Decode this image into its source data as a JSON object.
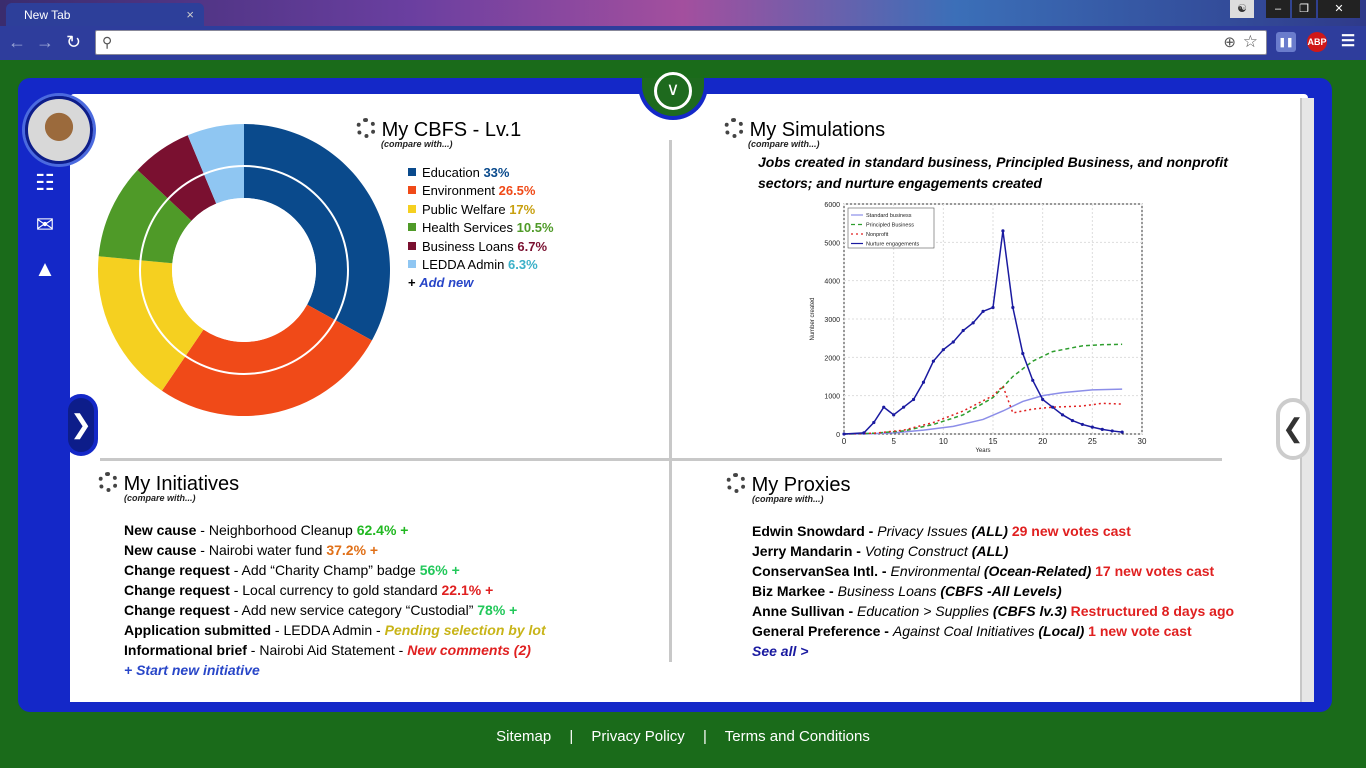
{
  "browser": {
    "tab_title": "New Tab",
    "tab_close": "×",
    "address_value": "",
    "ext_abp": "ABP"
  },
  "cbfs": {
    "title": "My CBFS - Lv.1",
    "compare": "(compare with...)",
    "items": [
      {
        "label": "Education",
        "value": "33%",
        "color": "#0a4a8c"
      },
      {
        "label": "Environment",
        "value": "26.5%",
        "color": "#f04a18"
      },
      {
        "label": "Public Welfare",
        "value": "17%",
        "color": "#f5d020"
      },
      {
        "label": "Health Services",
        "value": "10.5%",
        "color": "#4f9a28"
      },
      {
        "label": "Business Loans",
        "value": "6.7%",
        "color": "#7a1030"
      },
      {
        "label": "LEDDA Admin",
        "value": "6.3%",
        "color": "#8fc6f2"
      }
    ],
    "add_new_plus": "+",
    "add_new": "Add new"
  },
  "sims": {
    "title": "My Simulations",
    "compare": "(compare with...)",
    "desc": "Jobs created in standard business, Principled Business, and nonprofit sectors; and nurture engagements created"
  },
  "chart_data": {
    "type": "line",
    "title": "",
    "xlabel": "Years",
    "ylabel": "Number created",
    "xlim": [
      0,
      30
    ],
    "ylim": [
      0,
      6000
    ],
    "xticks": [
      "0",
      "5",
      "10",
      "15",
      "20",
      "25",
      "30"
    ],
    "yticks": [
      "0",
      "1000",
      "2000",
      "3000",
      "4000",
      "5000",
      "6000"
    ],
    "series": [
      {
        "name": "Standard business",
        "color": "#8c8ee8",
        "dash": "",
        "points": [
          [
            0,
            0
          ],
          [
            2,
            0
          ],
          [
            5,
            30
          ],
          [
            8,
            100
          ],
          [
            11,
            200
          ],
          [
            14,
            380
          ],
          [
            16,
            600
          ],
          [
            18,
            850
          ],
          [
            20,
            1000
          ],
          [
            22,
            1080
          ],
          [
            25,
            1150
          ],
          [
            28,
            1170
          ]
        ]
      },
      {
        "name": "Principled Business",
        "color": "#2e9e2e",
        "dash": "4,3",
        "points": [
          [
            0,
            0
          ],
          [
            3,
            20
          ],
          [
            6,
            80
          ],
          [
            9,
            250
          ],
          [
            12,
            500
          ],
          [
            15,
            950
          ],
          [
            17,
            1500
          ],
          [
            19,
            1900
          ],
          [
            21,
            2150
          ],
          [
            24,
            2300
          ],
          [
            26,
            2330
          ],
          [
            28,
            2340
          ]
        ]
      },
      {
        "name": "Nonprofit",
        "color": "#e02020",
        "dash": "2,3",
        "points": [
          [
            0,
            0
          ],
          [
            3,
            20
          ],
          [
            6,
            100
          ],
          [
            9,
            300
          ],
          [
            12,
            600
          ],
          [
            15,
            1000
          ],
          [
            16,
            1250
          ],
          [
            17,
            550
          ],
          [
            19,
            650
          ],
          [
            21,
            700
          ],
          [
            24,
            730
          ],
          [
            26,
            800
          ],
          [
            28,
            780
          ]
        ]
      },
      {
        "name": "Nurture engagements",
        "color": "#1a1aa0",
        "dash": "",
        "points": [
          [
            0,
            0
          ],
          [
            2,
            30
          ],
          [
            3,
            300
          ],
          [
            4,
            700
          ],
          [
            5,
            500
          ],
          [
            6,
            700
          ],
          [
            7,
            900
          ],
          [
            8,
            1350
          ],
          [
            9,
            1900
          ],
          [
            10,
            2200
          ],
          [
            11,
            2400
          ],
          [
            12,
            2700
          ],
          [
            13,
            2900
          ],
          [
            14,
            3200
          ],
          [
            15,
            3300
          ],
          [
            16,
            5300
          ],
          [
            17,
            3300
          ],
          [
            18,
            2100
          ],
          [
            19,
            1400
          ],
          [
            20,
            900
          ],
          [
            21,
            700
          ],
          [
            22,
            500
          ],
          [
            23,
            350
          ],
          [
            24,
            250
          ],
          [
            25,
            180
          ],
          [
            26,
            120
          ],
          [
            27,
            80
          ],
          [
            28,
            50
          ]
        ]
      }
    ]
  },
  "initiatives": {
    "title": "My Initiatives",
    "compare": "(compare with...)",
    "items": [
      {
        "type": "New cause",
        "sep": " - ",
        "text": "Neighborhood Cleanup ",
        "status": "62.4%",
        "plus": " +",
        "color": "#22b822",
        "italic": false
      },
      {
        "type": "New cause",
        "sep": " - ",
        "text": "Nairobi water fund ",
        "status": "37.2%",
        "plus": " +",
        "color": "#e07018",
        "italic": false
      },
      {
        "type": "Change request",
        "sep": " - ",
        "text": "Add “Charity Champ” badge ",
        "status": "56%",
        "plus": " +",
        "color": "#22c85a",
        "italic": false
      },
      {
        "type": "Change request",
        "sep": " - ",
        "text": "Local currency to gold standard ",
        "status": "22.1%",
        "plus": " +",
        "color": "#e02020",
        "italic": false
      },
      {
        "type": "Change request",
        "sep": " - ",
        "text": "Add new service category “Custodial” ",
        "status": "78%",
        "plus": " +",
        "color": "#22c85a",
        "italic": false
      },
      {
        "type": "Application submitted",
        "sep": " - ",
        "text": "LEDDA Admin - ",
        "status": "Pending selection by lot",
        "plus": "",
        "color": "#c8b418",
        "italic": true
      },
      {
        "type": "Informational brief",
        "sep": " - ",
        "text": "Nairobi Aid Statement - ",
        "status": "New comments (2)",
        "plus": "",
        "color": "#e02020",
        "italic": true
      }
    ],
    "start_new": "+ Start new initiative"
  },
  "proxies": {
    "title": "My Proxies",
    "compare": "(compare with...)",
    "items": [
      {
        "name": "Edwin Snowdard",
        "sep": " - ",
        "topic": "Privacy Issues ",
        "scope": "(ALL)",
        "status": "29 new votes cast"
      },
      {
        "name": "Jerry Mandarin",
        "sep": " - ",
        "topic": "Voting Construct ",
        "scope": "(ALL)",
        "status": ""
      },
      {
        "name": "ConservanSea Intl.",
        "sep": " - ",
        "topic": "Environmental ",
        "scope": "(Ocean-Related)",
        "status": "17 new votes cast"
      },
      {
        "name": "Biz Markee",
        "sep": " - ",
        "topic": "Business Loans ",
        "scope": "(CBFS -All Levels)",
        "status": ""
      },
      {
        "name": "Anne Sullivan",
        "sep": " - ",
        "topic": "Education > Supplies ",
        "scope": "(CBFS lv.3)",
        "status": "Restructured 8 days ago"
      },
      {
        "name": "General Preference",
        "sep": " - ",
        "topic": "Against Coal Initiatives ",
        "scope": "(Local)",
        "status": "1 new vote cast"
      }
    ],
    "see_all": "See all >"
  },
  "footer": {
    "sitemap": "Sitemap",
    "privacy": "Privacy Policy",
    "terms": "Terms and Conditions",
    "sep": "|"
  },
  "colors": {
    "frame": "#1428c8",
    "background": "#1a6b1a",
    "link": "#2846c8",
    "alert": "#e02020"
  }
}
